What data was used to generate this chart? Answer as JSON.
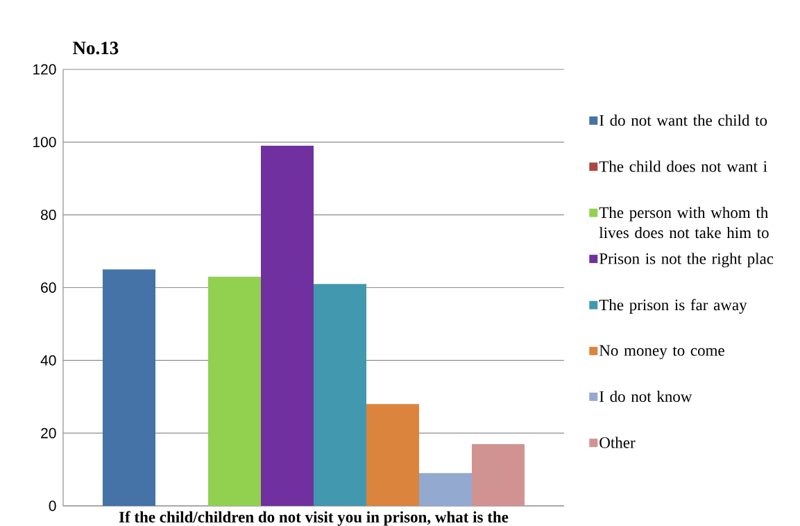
{
  "chart_data": {
    "type": "bar",
    "title": "No.13",
    "xlabel": "If the child/children do not visit you in prison, what is the",
    "categories": [
      null
    ],
    "series": [
      {
        "name": "I do not want the child to",
        "color": "#4572a7",
        "values": [
          65
        ]
      },
      {
        "name": "The child does not want i",
        "color": "#aa4643",
        "values": [
          0
        ]
      },
      {
        "name": "The person with whom th lives does not take him to",
        "color": "#92d050",
        "values": [
          63
        ]
      },
      {
        "name": "Prison is not the right plac",
        "color": "#7030a0",
        "values": [
          99
        ]
      },
      {
        "name": "The prison is far away",
        "color": "#4198af",
        "values": [
          61
        ]
      },
      {
        "name": "No money to come",
        "color": "#db843d",
        "values": [
          28
        ]
      },
      {
        "name": "I do not know",
        "color": "#93a9cf",
        "values": [
          9
        ]
      },
      {
        "name": "Other",
        "color": "#d19392",
        "values": [
          17
        ]
      }
    ],
    "ylim": [
      0,
      120
    ],
    "yticks": [
      0,
      20,
      40,
      60,
      80,
      100,
      120
    ],
    "grid": "y",
    "legend": "right"
  }
}
